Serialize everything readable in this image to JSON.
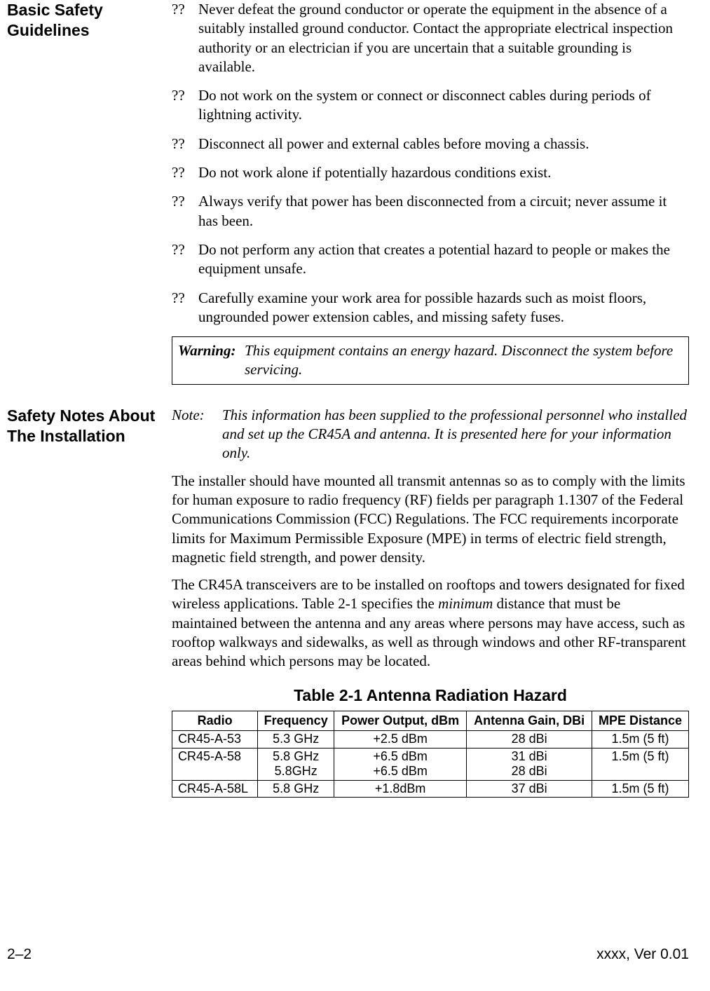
{
  "section1": {
    "heading": "Basic Safety Guidelines",
    "bullets": [
      "Never defeat the ground conductor or operate the equipment in the absence of a suitably installed ground conductor. Contact the appropriate electrical inspection authority or an electrician if you are uncertain that a suitable grounding is available.",
      "Do not work on the system or connect or disconnect cables during periods of lightning activity.",
      "Disconnect all power and external cables before moving a chassis.",
      "Do not work alone if potentially hazardous conditions exist.",
      "Always verify that power has been disconnected from a circuit; never assume it has been.",
      "Do not perform any action that creates a potential hazard to people or makes the equipment unsafe.",
      "Carefully examine your work area for possible hazards such as moist floors, ungrounded power extension cables, and missing safety fuses."
    ],
    "bullet_mark": "??",
    "warning_label": "Warning:",
    "warning_text": "This equipment contains an energy hazard. Disconnect the system before servicing."
  },
  "section2": {
    "heading": "Safety Notes About The Installation",
    "note_label": "Note:",
    "note_text": "This information has been supplied to the professional personnel who installed and set up the CR45A and antenna. It is presented here for your information only.",
    "para1": "The installer should have mounted all transmit antennas so as to comply with the limits for human exposure to radio frequency (RF) fields per paragraph 1.1307 of the Federal Communications Commission (FCC) Regulations. The FCC requirements incorporate limits for Maximum Permissible Exposure (MPE) in terms of electric field strength, magnetic field strength, and power density.",
    "para2_a": "The CR45A transceivers are to be installed on rooftops and towers designated for fixed wireless applications. Table 2-1 specifies the ",
    "para2_em": "minimum",
    "para2_b": " distance that must be maintained between the antenna and any areas where persons may have access, such as rooftop walkways and sidewalks, as well as through windows and other RF-transparent areas behind which persons may be located."
  },
  "table": {
    "title": "Table 2-1 Antenna Radiation Hazard",
    "headers": [
      "Radio",
      "Frequency",
      "Power Output, dBm",
      "Antenna Gain, DBi",
      "MPE Distance"
    ],
    "rows": [
      [
        "CR45-A-53",
        "5.3 GHz",
        "+2.5 dBm",
        "28 dBi",
        "1.5m (5 ft)"
      ],
      [
        "CR45-A-58",
        "5.8 GHz\n5.8GHz",
        "+6.5 dBm\n+6.5 dBm",
        "31 dBi\n28 dBi",
        "1.5m (5 ft)"
      ],
      [
        "CR45-A-58L",
        "5.8 GHz",
        "+1.8dBm",
        "37 dBi",
        "1.5m (5 ft)"
      ]
    ]
  },
  "footer": {
    "left": "2–2",
    "right": "xxxx, Ver 0.01"
  }
}
